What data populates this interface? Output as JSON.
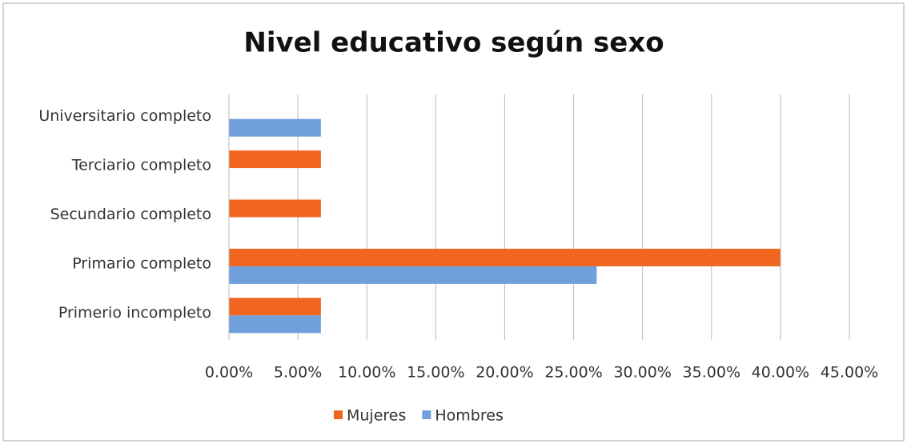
{
  "chart_data": {
    "type": "barh",
    "title": "Nivel educativo según sexo",
    "categories": [
      "Universitario completo",
      "Terciario completo",
      "Secundario completo",
      "Primario completo",
      "Primerio incompleto"
    ],
    "series": [
      {
        "name": "Mujeres",
        "color": "#f0661f",
        "values": [
          0,
          6.67,
          6.67,
          40,
          6.67
        ]
      },
      {
        "name": "Hombres",
        "color": "#6fa0dc",
        "values": [
          6.67,
          0,
          0,
          26.67,
          6.67
        ]
      }
    ],
    "xlim": [
      0,
      45
    ],
    "xticks": [
      {
        "value": 0,
        "label": "0.00%"
      },
      {
        "value": 5,
        "label": "5.00%"
      },
      {
        "value": 10,
        "label": "10.00%"
      },
      {
        "value": 15,
        "label": "15.00%"
      },
      {
        "value": 20,
        "label": "20.00%"
      },
      {
        "value": 25,
        "label": "25.00%"
      },
      {
        "value": 30,
        "label": "30.00%"
      },
      {
        "value": 35,
        "label": "35.00%"
      },
      {
        "value": 40,
        "label": "40.00%"
      },
      {
        "value": 45,
        "label": "45.00%"
      }
    ],
    "grid": true,
    "legend": "bottom"
  }
}
